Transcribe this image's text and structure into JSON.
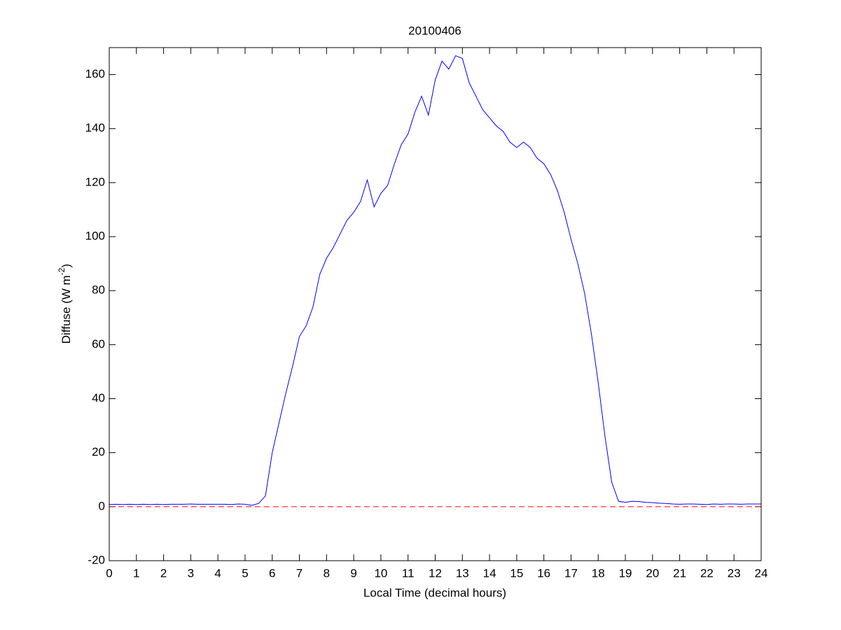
{
  "chart_data": {
    "type": "line",
    "title": "20100406",
    "xlabel": "Local Time (decimal hours)",
    "ylabel_parts": [
      "Diffuse (W m",
      "-2",
      ")"
    ],
    "x": [
      0,
      0.25,
      0.5,
      0.75,
      1,
      1.25,
      1.5,
      1.75,
      2,
      2.25,
      2.5,
      2.75,
      3,
      3.25,
      3.5,
      3.75,
      4,
      4.25,
      4.5,
      4.75,
      5,
      5.25,
      5.5,
      5.75,
      6,
      6.25,
      6.5,
      6.75,
      7,
      7.25,
      7.5,
      7.75,
      8,
      8.25,
      8.5,
      8.75,
      9,
      9.25,
      9.5,
      9.75,
      10,
      10.25,
      10.5,
      10.75,
      11,
      11.25,
      11.5,
      11.75,
      12,
      12.25,
      12.5,
      12.75,
      13,
      13.25,
      13.5,
      13.75,
      14,
      14.25,
      14.5,
      14.75,
      15,
      15.25,
      15.5,
      15.75,
      16,
      16.25,
      16.5,
      16.75,
      17,
      17.25,
      17.5,
      17.75,
      18,
      18.25,
      18.5,
      18.75,
      19,
      19.25,
      19.5,
      19.75,
      20,
      20.25,
      20.5,
      20.75,
      21,
      21.25,
      21.5,
      21.75,
      22,
      22.25,
      22.5,
      22.75,
      23,
      23.25,
      23.5,
      23.75,
      24
    ],
    "series": [
      {
        "color": "#0000ff",
        "values": [
          0.8,
          0.9,
          0.8,
          0.9,
          0.8,
          0.9,
          0.8,
          0.9,
          0.8,
          0.9,
          0.9,
          0.9,
          1.0,
          0.9,
          0.9,
          0.9,
          0.9,
          0.9,
          0.8,
          1.0,
          0.9,
          0.5,
          1.2,
          4,
          20,
          31,
          42,
          52,
          63,
          67,
          74,
          86,
          92,
          96,
          101,
          106,
          109,
          113,
          121,
          111,
          116,
          119,
          127,
          134,
          138,
          146,
          152,
          145,
          158,
          165,
          162,
          167,
          166,
          157,
          152,
          147,
          144,
          141,
          139,
          135,
          133,
          135,
          133,
          129,
          127,
          123,
          117,
          109,
          99,
          90,
          79,
          64,
          46,
          26,
          9,
          2,
          1.6,
          2.0,
          1.9,
          1.6,
          1.5,
          1.3,
          1.2,
          1.0,
          0.9,
          1.0,
          1.0,
          0.9,
          0.8,
          1.0,
          0.9,
          1.0,
          1.0,
          0.9,
          1.0,
          1.0,
          1.0
        ]
      }
    ],
    "reference_line": {
      "value": 0,
      "color": "#ff0000"
    },
    "xlim": [
      0,
      24
    ],
    "xticks": [
      0,
      1,
      2,
      3,
      4,
      5,
      6,
      7,
      8,
      9,
      10,
      11,
      12,
      13,
      14,
      15,
      16,
      17,
      18,
      19,
      20,
      21,
      22,
      23,
      24
    ],
    "ylim": [
      -20,
      170
    ],
    "yticks": [
      -20,
      0,
      20,
      40,
      60,
      80,
      100,
      120,
      140,
      160
    ]
  }
}
